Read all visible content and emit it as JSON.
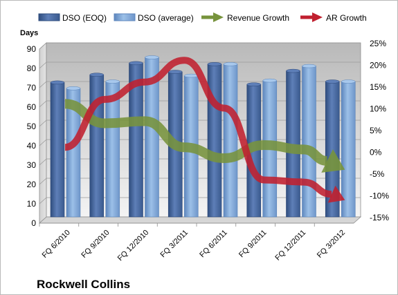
{
  "company_label": "Rockwell Collins",
  "chart_data": {
    "type": "bar",
    "categories": [
      "FQ 6/2010",
      "FQ 9/2010",
      "FQ 12/2010",
      "FQ 3/2011",
      "FQ 6/2011",
      "FQ 9/2011",
      "FQ 12/2011",
      "FQ 3/2012"
    ],
    "series": [
      {
        "name": "DSO (EOQ)",
        "type": "bar",
        "axis": "left",
        "color": "#4f6fa8",
        "values": [
          69.5,
          73.5,
          79.5,
          75,
          79,
          68.5,
          75.5,
          70
        ]
      },
      {
        "name": "DSO (average)",
        "type": "bar",
        "axis": "left",
        "color": "#7fa6d6",
        "values": [
          66.5,
          70,
          82.5,
          73,
          79,
          70.5,
          78,
          70
        ]
      },
      {
        "name": "Revenue Growth",
        "type": "arrow-line",
        "axis": "right",
        "color": "#77933c",
        "values": [
          11,
          6.5,
          7,
          1,
          -1.5,
          1.5,
          0.5,
          -4
        ]
      },
      {
        "name": "AR Growth",
        "type": "arrow-line",
        "axis": "right",
        "color": "#c0202f",
        "values": [
          1,
          12,
          16,
          21,
          10,
          -6.5,
          -7,
          -11
        ]
      }
    ],
    "ylabel": "Days",
    "ylim": [
      0,
      90
    ],
    "yticks": [
      0,
      10,
      20,
      30,
      40,
      50,
      60,
      70,
      80,
      90
    ],
    "y2lim": [
      -15,
      25
    ],
    "y2ticks": [
      "-15%",
      "-10%",
      "-5%",
      "0%",
      "5%",
      "10%",
      "15%",
      "20%",
      "25%"
    ],
    "legend_position": "top",
    "grid": true
  }
}
